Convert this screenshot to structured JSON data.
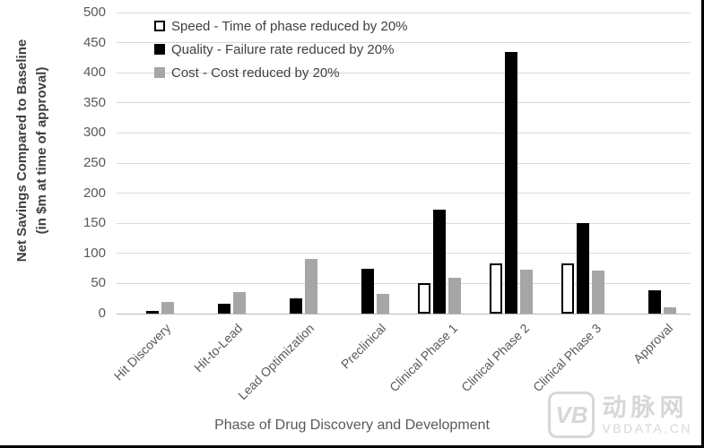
{
  "watermark": {
    "logo_text": "VB",
    "brand": "动脉网",
    "domain": "VBDATA.CN"
  },
  "colors": {
    "speed_fill": "#ffffff",
    "speed_border": "#000000",
    "quality_fill": "#000000",
    "cost_fill": "#a6a6a6",
    "gridline": "#d9d9d9",
    "axis_line": "#b7b7b7",
    "text_dark": "#404040",
    "text_axis": "#595959",
    "watermark_gray": "#d7d7d7"
  },
  "chart_data": {
    "type": "bar",
    "title": "",
    "xlabel": "Phase of Drug Discovery and Development",
    "ylabel_line1": "Net Savings Compared to Baseline",
    "ylabel_line2": "(in $m at time of approval)",
    "ylim": [
      0,
      500
    ],
    "ytick_step": 50,
    "grid": true,
    "legend_position": "top-left-inside",
    "categories": [
      "Hit Discovery",
      "Hit-to-Lead",
      "Lead Optimization",
      "Preclinical",
      "Clinical Phase 1",
      "Clinical Phase 2",
      "Clinical Phase 3",
      "Approval"
    ],
    "series": [
      {
        "name": "Speed - Time of phase reduced by 20%",
        "style": "outline",
        "fill": "#ffffff",
        "border": "#000000",
        "values": [
          0,
          0,
          0,
          0,
          50,
          83,
          83,
          0
        ]
      },
      {
        "name": "Quality - Failure rate reduced by 20%",
        "style": "solid",
        "fill": "#000000",
        "values": [
          5,
          17,
          25,
          74,
          173,
          435,
          150,
          38
        ]
      },
      {
        "name": "Cost - Cost reduced by 20%",
        "style": "solid",
        "fill": "#a6a6a6",
        "values": [
          20,
          36,
          91,
          32,
          60,
          73,
          72,
          11
        ]
      }
    ]
  }
}
